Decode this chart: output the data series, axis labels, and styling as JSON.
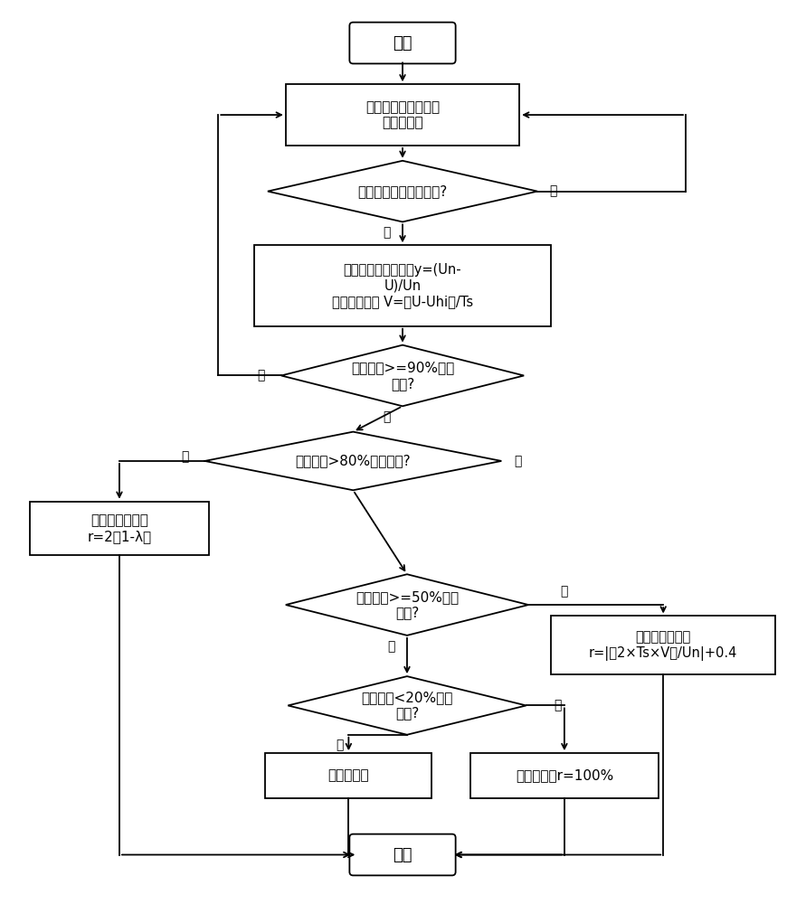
{
  "bg_color": "#ffffff",
  "line_color": "#000000",
  "text_color": "#000000",
  "font_size": 11,
  "font_family": "SimHei",
  "start_text": "开始",
  "end_text": "结束",
  "detect_text": "检测并计算电网三相\n电压有效值",
  "d1_text": "电网电压是否发生跌落?",
  "calc_drop_text": "计算电网电压跌落率y=(Un-\nU)/Un\n电压跌落速度 V=（U-Uhi）/Ts",
  "d2_text": "当前电压>=90%额定\n电压?",
  "d3_text": "当前电压>80%额定电压?",
  "calc_r1_text": "计算无功补偿率\nr=2（1-λ）",
  "d4_text": "当前电压>=50%额定\n电压?",
  "calc_r2_text": "计算无功补偿率\nr=|（2×Ts×V）/Un|+0.4",
  "d5_text": "当前电压<20%额定\n电压?",
  "inv_off_text": "逆变器离网",
  "r100_text": "无功补偿率r=100%",
  "yes_text": "是",
  "no_text": "否"
}
